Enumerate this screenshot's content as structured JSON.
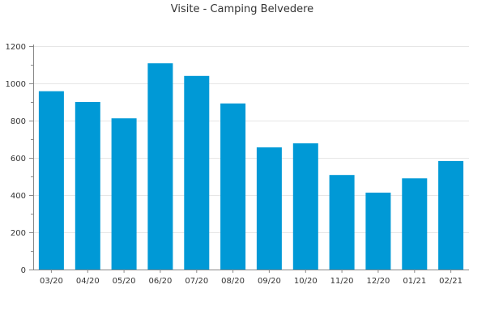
{
  "chart_data": {
    "type": "bar",
    "title": "Visite - Camping Belvedere",
    "xlabel": "",
    "ylabel": "",
    "categories": [
      "03/20",
      "04/20",
      "05/20",
      "06/20",
      "07/20",
      "08/20",
      "09/20",
      "10/20",
      "11/20",
      "12/20",
      "01/21",
      "02/21"
    ],
    "values": [
      958,
      900,
      812,
      1108,
      1040,
      892,
      656,
      678,
      508,
      413,
      490,
      583
    ],
    "ylim": [
      0,
      1200
    ],
    "yticks": [
      0,
      200,
      400,
      600,
      800,
      1000,
      1200
    ],
    "grid": true,
    "legend": "none",
    "colors": {
      "bar": "#0099d6",
      "grid": "#e6e6e6",
      "axis": "#888888",
      "text": "#333333"
    }
  }
}
